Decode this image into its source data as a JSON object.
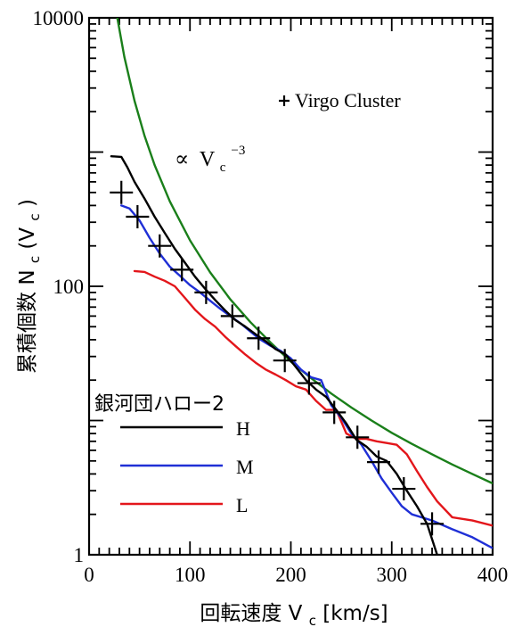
{
  "chart_data": {
    "type": "line",
    "title": "",
    "xlabel": "回転速度 V_c [km/s]",
    "ylabel": "累積個数 N_c(V_c)",
    "xlabel_parts": {
      "main": "回転速度 V",
      "sub": "c",
      "tail": " [km/s]"
    },
    "ylabel_parts": {
      "main": "累積個数 N",
      "sub": "c",
      "mid": "(V",
      "sub2": "c",
      "tail": ")"
    },
    "xlim": [
      0,
      400
    ],
    "ylim": [
      1,
      10000
    ],
    "yscale": "log",
    "x_ticks": [
      "0",
      "100",
      "200",
      "300",
      "400"
    ],
    "y_ticks": [
      "1",
      "100",
      "10000"
    ],
    "legend_title": "銀河団ハロー2",
    "legend_position": "bottom-left",
    "virgo_label": "Virgo Cluster",
    "power_law_label": {
      "prop": "∝",
      "main": "V",
      "sub": "c",
      "sup": "−3"
    },
    "colors": {
      "H": "#000000",
      "M": "#1f2fd6",
      "L": "#e3161b",
      "power_law": "#1a7f1a",
      "virgo": "#000000"
    },
    "series": [
      {
        "name": "H",
        "x": [
          22,
          32,
          38,
          45,
          55,
          65,
          75,
          85,
          95,
          105,
          115,
          125,
          135,
          145,
          155,
          165,
          175,
          185,
          195,
          205,
          215,
          225,
          235,
          245,
          255,
          265,
          275,
          285,
          295,
          305,
          315,
          325,
          335,
          345
        ],
        "y": [
          930,
          920,
          770,
          600,
          450,
          330,
          250,
          190,
          150,
          118,
          96,
          79,
          66,
          56,
          50,
          44,
          39,
          34,
          31,
          25,
          20,
          17,
          15,
          12,
          9.5,
          7.2,
          6.4,
          5.4,
          5.0,
          4.0,
          3.0,
          2.3,
          1.7,
          1.0
        ]
      },
      {
        "name": "M",
        "x": [
          32,
          40,
          50,
          60,
          70,
          80,
          90,
          100,
          110,
          120,
          130,
          140,
          150,
          160,
          170,
          180,
          190,
          200,
          210,
          220,
          230,
          240,
          250,
          260,
          270,
          280,
          290,
          300,
          310,
          320,
          340,
          360,
          380,
          400
        ],
        "y": [
          400,
          380,
          310,
          230,
          175,
          140,
          120,
          102,
          90,
          78,
          68,
          60,
          53,
          46,
          40,
          36,
          33,
          29,
          24,
          21,
          20,
          13,
          10.5,
          8.0,
          6.6,
          5.0,
          3.7,
          2.9,
          2.3,
          2.0,
          1.8,
          1.55,
          1.35,
          1.12
        ]
      },
      {
        "name": "L",
        "x": [
          45,
          55,
          65,
          75,
          85,
          95,
          105,
          115,
          125,
          135,
          145,
          155,
          165,
          175,
          185,
          195,
          205,
          215,
          225,
          235,
          245,
          255,
          265,
          275,
          285,
          295,
          305,
          315,
          325,
          335,
          345,
          360,
          380,
          400
        ],
        "y": [
          130,
          128,
          118,
          110,
          100,
          82,
          67,
          57,
          50,
          42,
          36,
          31,
          27,
          24,
          22,
          20,
          18,
          17,
          14,
          12,
          12,
          8.0,
          7.3,
          7.3,
          7.0,
          6.8,
          6.6,
          5.6,
          4.2,
          3.2,
          2.5,
          1.9,
          1.8,
          1.65
        ]
      },
      {
        "name": "V_c^-3",
        "x": [
          28,
          35,
          45,
          55,
          65,
          80,
          100,
          120,
          140,
          160,
          180,
          200,
          220,
          240,
          260,
          280,
          300,
          320,
          340,
          360,
          380,
          400
        ],
        "y": [
          10000,
          5120,
          2410,
          1320,
          800,
          430,
          220,
          127,
          80,
          54,
          38,
          27.5,
          20.7,
          15.9,
          12.5,
          10.0,
          8.1,
          6.7,
          5.6,
          4.7,
          4.0,
          3.4
        ]
      },
      {
        "name": "Virgo Cluster",
        "x": [
          32,
          48,
          70,
          92,
          116,
          142,
          168,
          194,
          218,
          243,
          266,
          287,
          312,
          340
        ],
        "y": [
          500,
          330,
          200,
          133,
          90,
          60,
          41,
          28,
          19,
          11.5,
          7.5,
          4.9,
          3.1,
          1.7
        ]
      }
    ]
  }
}
